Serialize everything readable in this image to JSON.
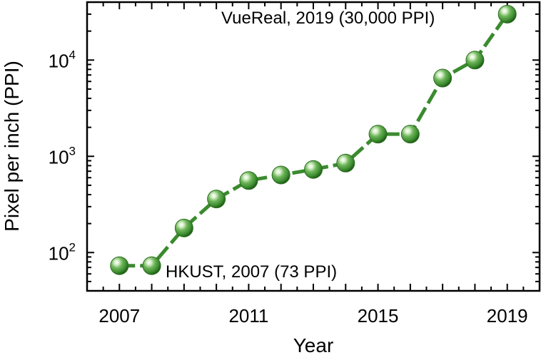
{
  "chart_data": {
    "type": "line",
    "xlabel": "Year",
    "ylabel": "Pixel per inch (PPI)",
    "yscale": "log",
    "xlim": [
      2006.0,
      2020.0
    ],
    "ylim": [
      40,
      40000
    ],
    "xticks": [
      2007,
      2011,
      2015,
      2019
    ],
    "xticklabels": [
      "2007",
      "2011",
      "2015",
      "2019"
    ],
    "yticks": [
      {
        "value": 100,
        "base": "10",
        "exp": "2"
      },
      {
        "value": 1000,
        "base": "10",
        "exp": "3"
      },
      {
        "value": 10000,
        "base": "10",
        "exp": "4"
      }
    ],
    "series": [
      {
        "color": "#3a8a2e",
        "line_style": "dashed",
        "x": [
          2007,
          2008,
          2009,
          2010,
          2011,
          2012,
          2013,
          2014,
          2015,
          2016,
          2017,
          2018,
          2019
        ],
        "y": [
          73,
          73,
          180,
          360,
          560,
          640,
          730,
          850,
          1700,
          1700,
          6500,
          10000,
          30000
        ]
      }
    ],
    "annotations": [
      {
        "text": "VueReal, 2019 (30,000 PPI)",
        "x": 2019,
        "y": 30000
      },
      {
        "text": "HKUST, 2007 (73 PPI)",
        "x": 2007,
        "y": 73
      }
    ],
    "grid": false,
    "legend": "none"
  }
}
